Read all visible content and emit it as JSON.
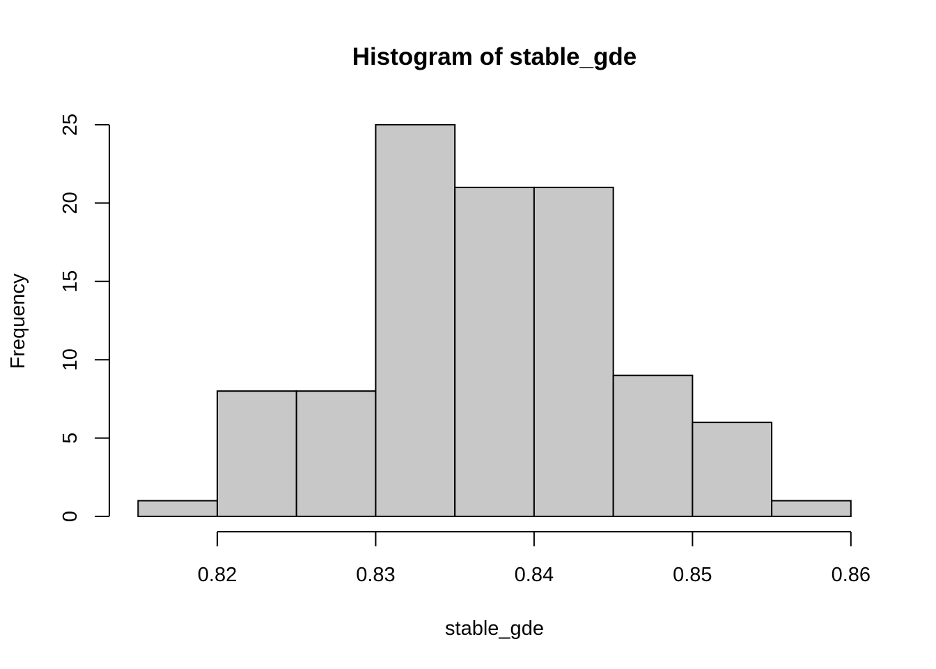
{
  "chart_data": {
    "type": "bar",
    "title": "Histogram of stable_gde",
    "xlabel": "stable_gde",
    "ylabel": "Frequency",
    "bins": [
      {
        "x0": 0.815,
        "x1": 0.82,
        "count": 1
      },
      {
        "x0": 0.82,
        "x1": 0.825,
        "count": 8
      },
      {
        "x0": 0.825,
        "x1": 0.83,
        "count": 8
      },
      {
        "x0": 0.83,
        "x1": 0.835,
        "count": 25
      },
      {
        "x0": 0.835,
        "x1": 0.84,
        "count": 21
      },
      {
        "x0": 0.84,
        "x1": 0.845,
        "count": 21
      },
      {
        "x0": 0.845,
        "x1": 0.85,
        "count": 9
      },
      {
        "x0": 0.85,
        "x1": 0.855,
        "count": 6
      },
      {
        "x0": 0.855,
        "x1": 0.86,
        "count": 1
      }
    ],
    "xticks": [
      0.82,
      0.83,
      0.84,
      0.85,
      0.86
    ],
    "xtick_labels": [
      "0.82",
      "0.83",
      "0.84",
      "0.85",
      "0.86"
    ],
    "yticks": [
      0,
      5,
      10,
      15,
      20,
      25
    ],
    "ytick_labels": [
      "0",
      "5",
      "10",
      "15",
      "20",
      "25"
    ],
    "xlim": [
      0.815,
      0.86
    ],
    "ylim": [
      0,
      25
    ],
    "grid": false,
    "colors": {
      "bar_fill": "#c8c8c8",
      "bar_stroke": "#000000"
    }
  }
}
